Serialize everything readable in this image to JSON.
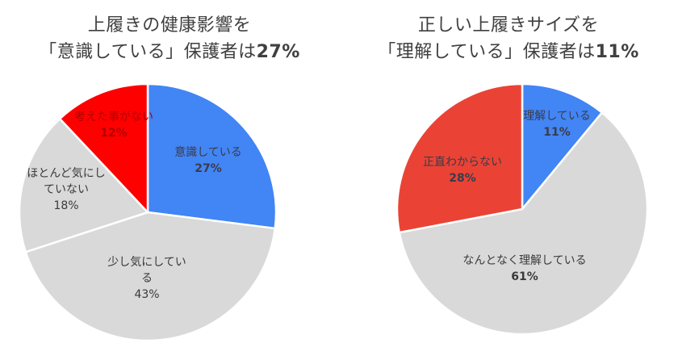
{
  "chart_data": [
    {
      "type": "pie",
      "title": "上履きの健康影響を「意識している」保護者は27%",
      "title_lines": [
        "上履きの健康影響を",
        "「意識している」保護者は",
        "27%"
      ],
      "categories": [
        "意識している",
        "少し気にしている",
        "ほとんど気にしていない",
        "考えた事がない"
      ],
      "values": [
        27,
        43,
        18,
        12
      ],
      "labels": [
        "27%",
        "43%",
        "18%",
        "12%"
      ],
      "colors": [
        "#4285f4",
        "#d9d9d9",
        "#d9d9d9",
        "#ff0000"
      ],
      "start_angle_deg": 0,
      "direction": "clockwise",
      "legend": "none (inline labels)"
    },
    {
      "type": "pie",
      "title": "正しい上履きサイズを「理解している」保護者は11%",
      "title_lines": [
        "正しい上履きサイズを",
        "「理解している」保護者は",
        "11%"
      ],
      "categories": [
        "理解している",
        "なんとなく理解している",
        "正直わからない"
      ],
      "values": [
        11,
        61,
        28
      ],
      "labels": [
        "11%",
        "61%",
        "28%"
      ],
      "colors": [
        "#4285f4",
        "#d9d9d9",
        "#ea4335"
      ],
      "start_angle_deg": 0,
      "direction": "clockwise",
      "legend": "none (inline labels)"
    }
  ],
  "left": {
    "title_line1": "上履きの健康影響を",
    "title_line2_prefix": "「意識している」保護者は",
    "title_line2_value": "27%",
    "slices": [
      {
        "name": "意識している",
        "pct": "27%",
        "lines": [
          "意識している"
        ]
      },
      {
        "name": "少し気にしている",
        "pct": "43%",
        "lines": [
          "少し気にしてい",
          "る"
        ]
      },
      {
        "name": "ほとんど気にしていない",
        "pct": "18%",
        "lines": [
          "ほとんど気にし",
          "ていない"
        ]
      },
      {
        "name": "考えた事がない",
        "pct": "12%",
        "lines": [
          "考えた事がない"
        ]
      }
    ]
  },
  "right": {
    "title_line1": "正しい上履きサイズを",
    "title_line2_prefix": "「理解している」保護者は",
    "title_line2_value": "11%",
    "slices": [
      {
        "name": "理解している",
        "pct": "11%",
        "lines": [
          "理解している"
        ]
      },
      {
        "name": "なんとなく理解している",
        "pct": "61%",
        "lines": [
          "なんとなく理解している"
        ]
      },
      {
        "name": "正直わからない",
        "pct": "28%",
        "lines": [
          "正直わからない"
        ]
      }
    ]
  }
}
